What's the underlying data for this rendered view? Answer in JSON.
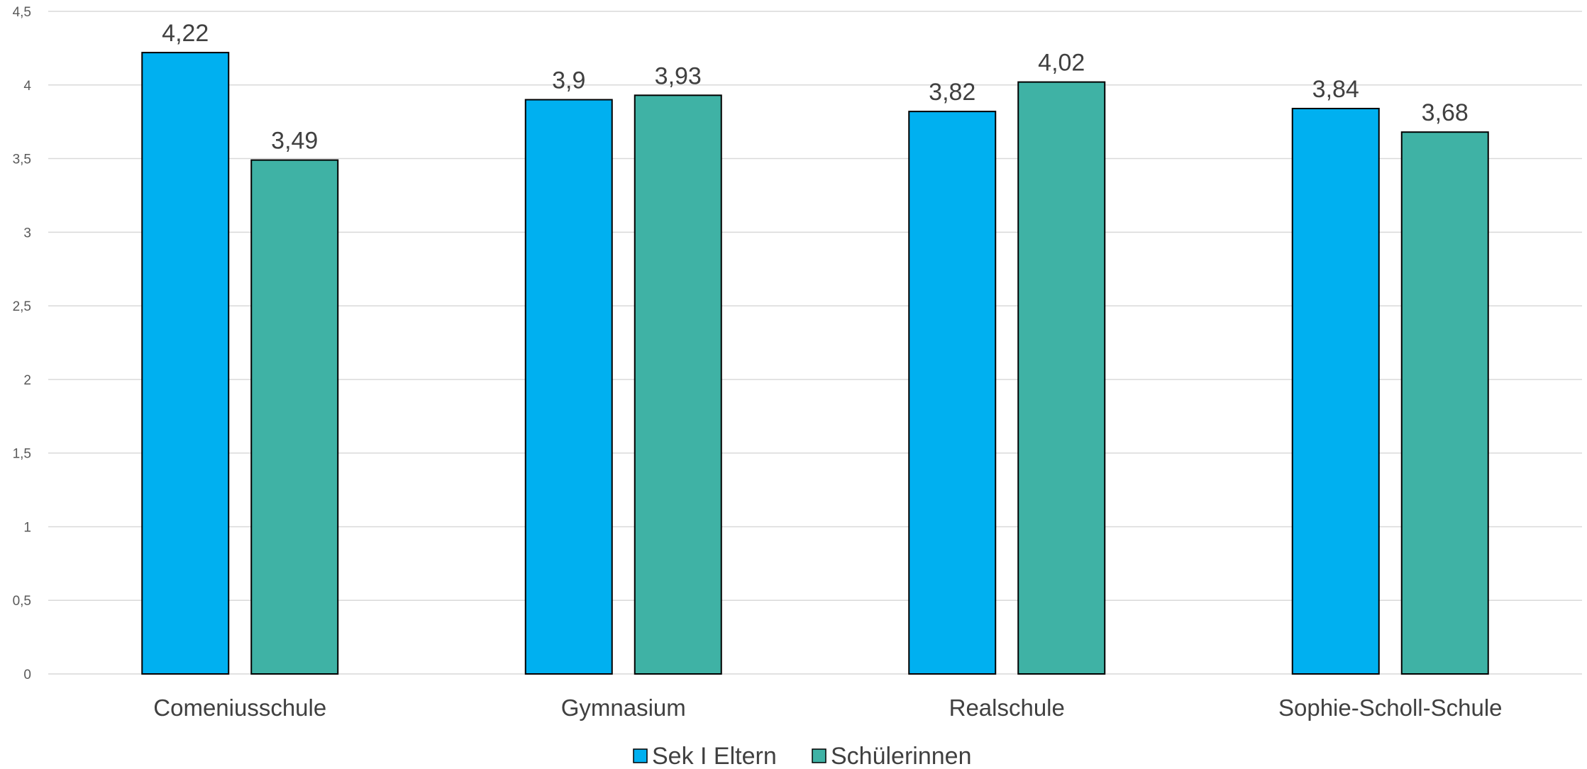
{
  "chart_data": {
    "type": "bar",
    "categories": [
      "Comeniusschule",
      "Gymnasium",
      "Realschule",
      "Sophie-Scholl-Schule"
    ],
    "series": [
      {
        "name": "Sek I Eltern",
        "values": [
          4.22,
          3.9,
          3.82,
          3.84
        ],
        "labels": [
          "4,22",
          "3,9",
          "3,82",
          "3,84"
        ],
        "color": "#00B0F0"
      },
      {
        "name": "Schülerinnen",
        "values": [
          3.49,
          3.93,
          4.02,
          3.68
        ],
        "labels": [
          "3,49",
          "3,93",
          "4,02",
          "3,68"
        ],
        "color": "#3FB2A5"
      }
    ],
    "ylim": [
      0,
      4.5
    ],
    "yticks": [
      0,
      0.5,
      1,
      1.5,
      2,
      2.5,
      3,
      3.5,
      4,
      4.5
    ],
    "ytick_labels": [
      "0",
      "0,5",
      "1",
      "1,5",
      "2",
      "2,5",
      "3",
      "3,5",
      "4",
      "4,5"
    ],
    "grid": true,
    "legend_position": "bottom-center",
    "title": "",
    "xlabel": "",
    "ylabel": ""
  }
}
